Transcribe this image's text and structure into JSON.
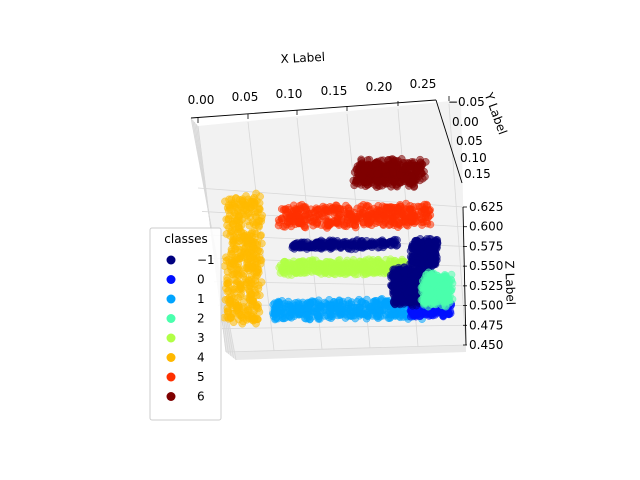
{
  "chart_data": {
    "type": "scatter",
    "projection": "3d",
    "xlabel": "X Label",
    "ylabel": "Y Label",
    "zlabel": "Z Label",
    "xlim": [
      0.0,
      0.25
    ],
    "ylim": [
      -0.05,
      0.15
    ],
    "zlim": [
      0.45,
      0.625
    ],
    "x_ticks": [
      "0.00",
      "0.05",
      "0.10",
      "0.15",
      "0.20",
      "0.25"
    ],
    "y_ticks": [
      "−0.05",
      "0.00",
      "0.05",
      "0.10",
      "0.15"
    ],
    "z_ticks": [
      "0.450",
      "0.475",
      "0.500",
      "0.525",
      "0.550",
      "0.575",
      "0.600",
      "0.625"
    ],
    "grid": true,
    "legend": {
      "title": "classes",
      "placement": "lower-left",
      "entries": [
        {
          "label": "−1",
          "color": "#00007f"
        },
        {
          "label": "0",
          "color": "#0010ff"
        },
        {
          "label": "1",
          "color": "#00a4ff"
        },
        {
          "label": "2",
          "color": "#4affad"
        },
        {
          "label": "3",
          "color": "#b1ff46"
        },
        {
          "label": "4",
          "color": "#ffb900"
        },
        {
          "label": "5",
          "color": "#ff3000"
        },
        {
          "label": "6",
          "color": "#7f0000"
        }
      ]
    },
    "series": [
      {
        "name": "6",
        "color": "#7f0000",
        "clusters": [
          {
            "x": [
              0.12,
              0.22
            ],
            "y": [
              0.06,
              0.14
            ],
            "z": [
              0.635,
              0.66
            ]
          }
        ]
      },
      {
        "name": "5",
        "color": "#ff3000",
        "clusters": [
          {
            "x": [
              0.02,
              0.25
            ],
            "y": [
              -0.01,
              0.02
            ],
            "z": [
              0.6,
              0.625
            ]
          }
        ]
      },
      {
        "name": "4",
        "color": "#ffb900",
        "clusters": [
          {
            "x": [
              -0.06,
              -0.01
            ],
            "y": [
              -0.02,
              0.03
            ],
            "z": [
              0.48,
              0.64
            ]
          }
        ]
      },
      {
        "name": "3",
        "color": "#b1ff46",
        "clusters": [
          {
            "x": [
              0.02,
              0.21
            ],
            "y": [
              -0.01,
              0.02
            ],
            "z": [
              0.54,
              0.555
            ]
          }
        ]
      },
      {
        "name": "2",
        "color": "#4affad",
        "clusters": [
          {
            "x": [
              0.24,
              0.28
            ],
            "y": [
              -0.02,
              0.03
            ],
            "z": [
              0.5,
              0.535
            ]
          }
        ]
      },
      {
        "name": "1",
        "color": "#00a4ff",
        "clusters": [
          {
            "x": [
              0.01,
              0.24
            ],
            "y": [
              -0.01,
              0.02
            ],
            "z": [
              0.483,
              0.505
            ]
          }
        ]
      },
      {
        "name": "0",
        "color": "#0010ff",
        "clusters": [
          {
            "x": [
              0.22,
              0.28
            ],
            "y": [
              -0.01,
              0.02
            ],
            "z": [
              0.485,
              0.5
            ]
          }
        ]
      },
      {
        "name": "−1",
        "color": "#00007f",
        "clusters": [
          {
            "x": [
              0.22,
              0.26
            ],
            "y": [
              -0.01,
              0.02
            ],
            "z": [
              0.55,
              0.58
            ]
          },
          {
            "x": [
              0.04,
              0.2
            ],
            "y": [
              -0.01,
              0.02
            ],
            "z": [
              0.573,
              0.58
            ]
          },
          {
            "x": [
              0.19,
              0.25
            ],
            "y": [
              -0.01,
              0.02
            ],
            "z": [
              0.5,
              0.545
            ]
          }
        ]
      }
    ]
  }
}
